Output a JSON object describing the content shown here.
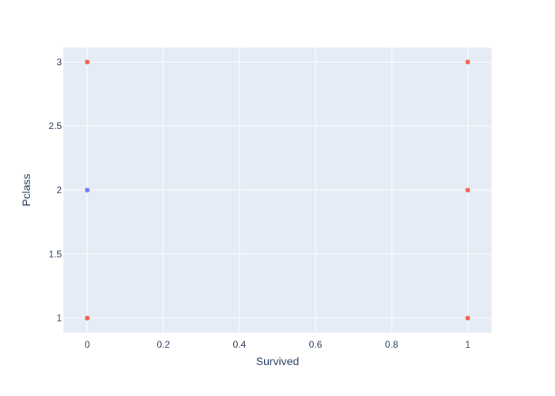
{
  "chart_data": {
    "type": "scatter",
    "xlabel": "Survived",
    "ylabel": "Pclass",
    "xlim": [
      -0.0625,
      1.0625
    ],
    "ylim": [
      0.8864,
      3.1136
    ],
    "x_ticks": [
      0,
      0.2,
      0.4,
      0.6,
      0.8,
      1
    ],
    "x_tick_labels": [
      "0",
      "0.2",
      "0.4",
      "0.6",
      "0.8",
      "1"
    ],
    "y_ticks": [
      1,
      1.5,
      2,
      2.5,
      3
    ],
    "y_tick_labels": [
      "1",
      "1.5",
      "2",
      "2.5",
      "3"
    ],
    "grid": true,
    "legend": false,
    "background_color": "#e5ecf6",
    "grid_color": "#ffffff",
    "series": [
      {
        "color": "#636efa",
        "points": [
          {
            "x": 0,
            "y": 2
          }
        ]
      },
      {
        "color": "#ef553b",
        "points": [
          {
            "x": 0,
            "y": 3
          },
          {
            "x": 0,
            "y": 1
          },
          {
            "x": 1,
            "y": 3
          },
          {
            "x": 1,
            "y": 2
          },
          {
            "x": 1,
            "y": 1
          }
        ]
      }
    ]
  }
}
